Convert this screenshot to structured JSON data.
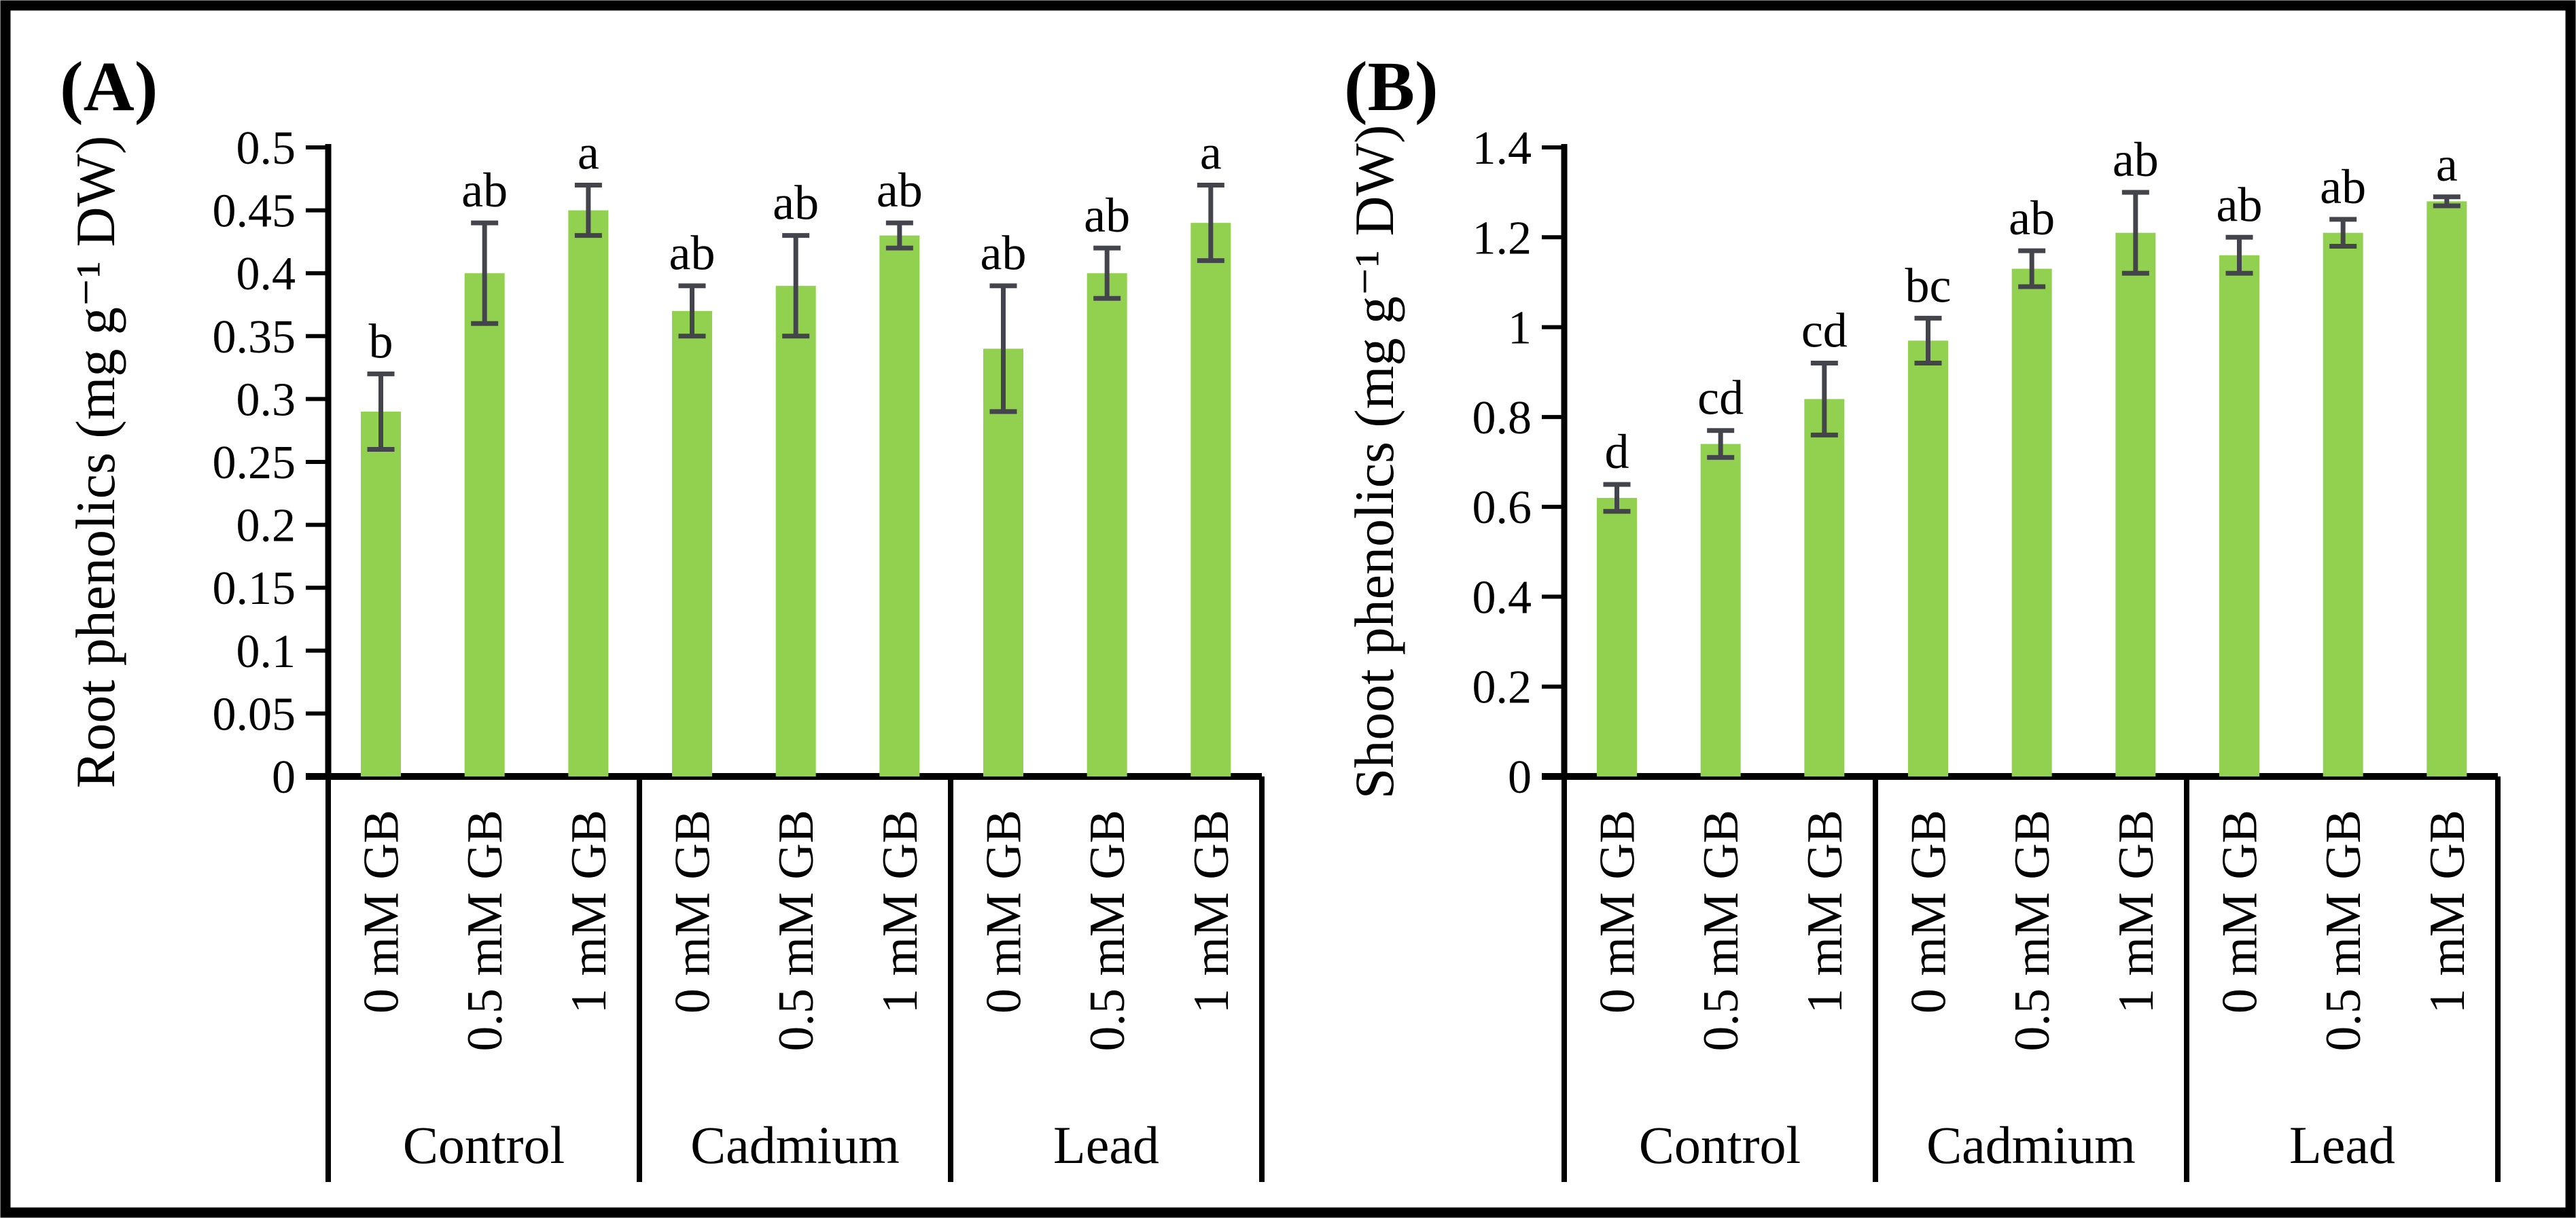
{
  "figure": {
    "background": "#FFFFFF",
    "border_color": "#000000",
    "text_color": "#000000"
  },
  "chart_data": [
    {
      "type": "bar",
      "panel_label": "(A)",
      "title": "",
      "xlabel": "",
      "ylabel": "Root phenolics (mg g⁻¹ DW)",
      "ylim": [
        0,
        0.5
      ],
      "ytick_step": 0.05,
      "ytick_labels": [
        "0",
        "0.05",
        "0.1",
        "0.15",
        "0.2",
        "0.25",
        "0.3",
        "0.35",
        "0.4",
        "0.45",
        "0.5"
      ],
      "grid": "off",
      "legend": "none",
      "groups": [
        "Control",
        "Cadmium",
        "Lead"
      ],
      "categories": [
        "0 mM GB",
        "0.5 mM GB",
        "1 mM GB"
      ],
      "values": [
        0.29,
        0.4,
        0.45,
        0.37,
        0.39,
        0.43,
        0.34,
        0.4,
        0.44
      ],
      "errors": [
        0.03,
        0.04,
        0.02,
        0.02,
        0.04,
        0.01,
        0.05,
        0.02,
        0.03
      ],
      "sig_letters": [
        "b",
        "ab",
        "a",
        "ab",
        "ab",
        "ab",
        "ab",
        "ab",
        "a"
      ],
      "bar_color": "#92D050",
      "error_color": "#44444C"
    },
    {
      "type": "bar",
      "panel_label": "(B)",
      "title": "",
      "xlabel": "",
      "ylabel": "Shoot phenolics (mg g⁻¹ DW)",
      "ylim": [
        0,
        1.4
      ],
      "ytick_step": 0.2,
      "ytick_labels": [
        "0",
        "0.2",
        "0.4",
        "0.6",
        "0.8",
        "1",
        "1.2",
        "1.4"
      ],
      "grid": "off",
      "legend": "none",
      "groups": [
        "Control",
        "Cadmium",
        "Lead"
      ],
      "categories": [
        "0 mM GB",
        "0.5 mM GB",
        "1 mM GB"
      ],
      "values": [
        0.62,
        0.74,
        0.84,
        0.97,
        1.13,
        1.21,
        1.16,
        1.21,
        1.28
      ],
      "errors": [
        0.03,
        0.03,
        0.08,
        0.05,
        0.04,
        0.09,
        0.04,
        0.03,
        0.01
      ],
      "sig_letters": [
        "d",
        "cd",
        "cd",
        "bc",
        "ab",
        "ab",
        "ab",
        "ab",
        "a"
      ],
      "bar_color": "#92D050",
      "error_color": "#44444C"
    }
  ]
}
